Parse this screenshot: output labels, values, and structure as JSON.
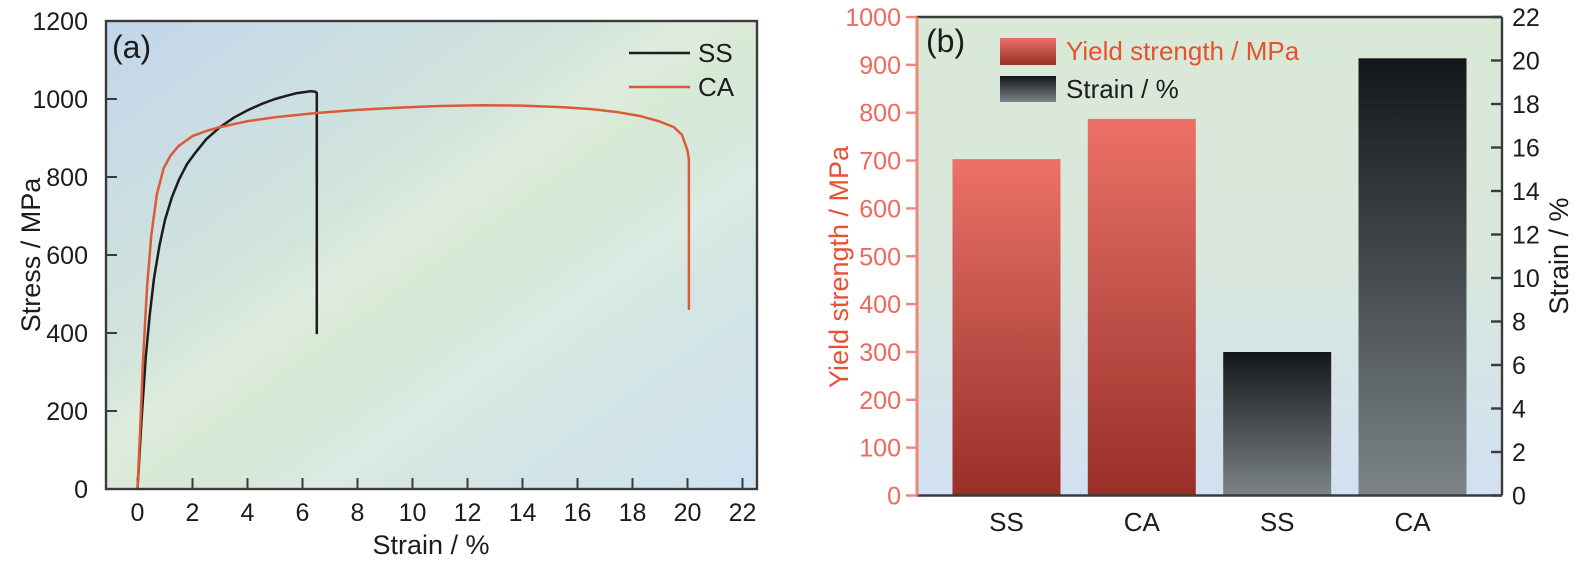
{
  "figure": {
    "description": "Two-panel materials figure: (a) stress-strain curves, (b) yield strength and strain bar chart",
    "panels": [
      "(a)",
      "(b)"
    ]
  },
  "chart_data": [
    {
      "type": "line",
      "panel_label": "(a)",
      "title": "",
      "xlabel": "Strain / %",
      "ylabel": "Stress / MPa",
      "xlim": [
        -1.15,
        22.55
      ],
      "ylim": [
        0,
        1200
      ],
      "xticks": [
        0,
        2,
        4,
        6,
        8,
        10,
        12,
        14,
        16,
        18,
        20,
        22
      ],
      "yticks": [
        0,
        200,
        400,
        600,
        800,
        1000,
        1200
      ],
      "grid": false,
      "legend_position": "top-right",
      "background_gradient": [
        "#c2d6ec",
        "#d8e9d5",
        "#cfe2f1"
      ],
      "series": [
        {
          "name": "SS",
          "color": "#1c1c1c",
          "x": [
            0,
            0.15,
            0.3,
            0.45,
            0.6,
            0.8,
            1.0,
            1.25,
            1.5,
            1.8,
            2.1,
            2.5,
            3.0,
            3.5,
            4.0,
            4.5,
            5.0,
            5.4,
            5.8,
            6.1,
            6.3,
            6.45,
            6.52,
            6.52
          ],
          "y": [
            0,
            180,
            340,
            450,
            540,
            625,
            690,
            748,
            792,
            833,
            862,
            897,
            928,
            952,
            971,
            987,
            1000,
            1008,
            1015,
            1018,
            1020,
            1019,
            1016,
            400
          ]
        },
        {
          "name": "CA",
          "color": "#dc5a36",
          "x": [
            0,
            0.1,
            0.2,
            0.35,
            0.5,
            0.7,
            0.95,
            1.2,
            1.5,
            2.0,
            2.5,
            3.0,
            4.0,
            5.0,
            6.5,
            8.0,
            9.5,
            11.0,
            12.5,
            14.0,
            15.5,
            16.5,
            17.5,
            18.3,
            19.0,
            19.5,
            19.8,
            20.0,
            20.05,
            20.05
          ],
          "y": [
            0,
            160,
            330,
            520,
            650,
            755,
            822,
            855,
            880,
            905,
            918,
            928,
            943,
            953,
            964,
            972,
            978,
            982,
            984,
            983,
            979,
            974,
            966,
            956,
            942,
            928,
            908,
            868,
            845,
            462
          ]
        }
      ]
    },
    {
      "type": "bar",
      "panel_label": "(b)",
      "categories": [
        "SS",
        "CA",
        "SS",
        "CA"
      ],
      "bars": [
        {
          "category": "SS",
          "series": "Yield strength / MPa",
          "axis": "left",
          "value": 703
        },
        {
          "category": "CA",
          "series": "Yield strength / MPa",
          "axis": "left",
          "value": 787
        },
        {
          "category": "SS",
          "series": "Strain / %",
          "axis": "right",
          "value": 6.6
        },
        {
          "category": "CA",
          "series": "Strain / %",
          "axis": "right",
          "value": 20.1
        }
      ],
      "left_axis": {
        "label": "Yield strength / MPa",
        "range": [
          0,
          1000
        ],
        "ticks": [
          0,
          100,
          200,
          300,
          400,
          500,
          600,
          700,
          800,
          900,
          1000
        ],
        "tick_color": "#ed695b",
        "title_color": "#e75136",
        "spine_color": "#f0867a"
      },
      "right_axis": {
        "label": "Strain / %",
        "range": [
          0,
          22
        ],
        "ticks": [
          0,
          2,
          4,
          6,
          8,
          10,
          12,
          14,
          16,
          18,
          20,
          22
        ],
        "tick_color": "#1c1c1c",
        "title_color": "#1c1c1c",
        "spine_color": "#3b3b3b"
      },
      "legend": [
        {
          "label": "Yield strength / MPa",
          "text_color": "#e7512f",
          "swatch_gradient": [
            "#ed7168",
            "#c4544c",
            "#9a2f28"
          ]
        },
        {
          "label": "Strain / %",
          "text_color": "#1c1c1c",
          "swatch_gradient": [
            "#141719",
            "#4b5154",
            "#7d8487"
          ]
        }
      ],
      "grid": false,
      "background_gradient": [
        "#d9e9d6",
        "#d9e7dd",
        "#d2e0f2"
      ]
    }
  ]
}
